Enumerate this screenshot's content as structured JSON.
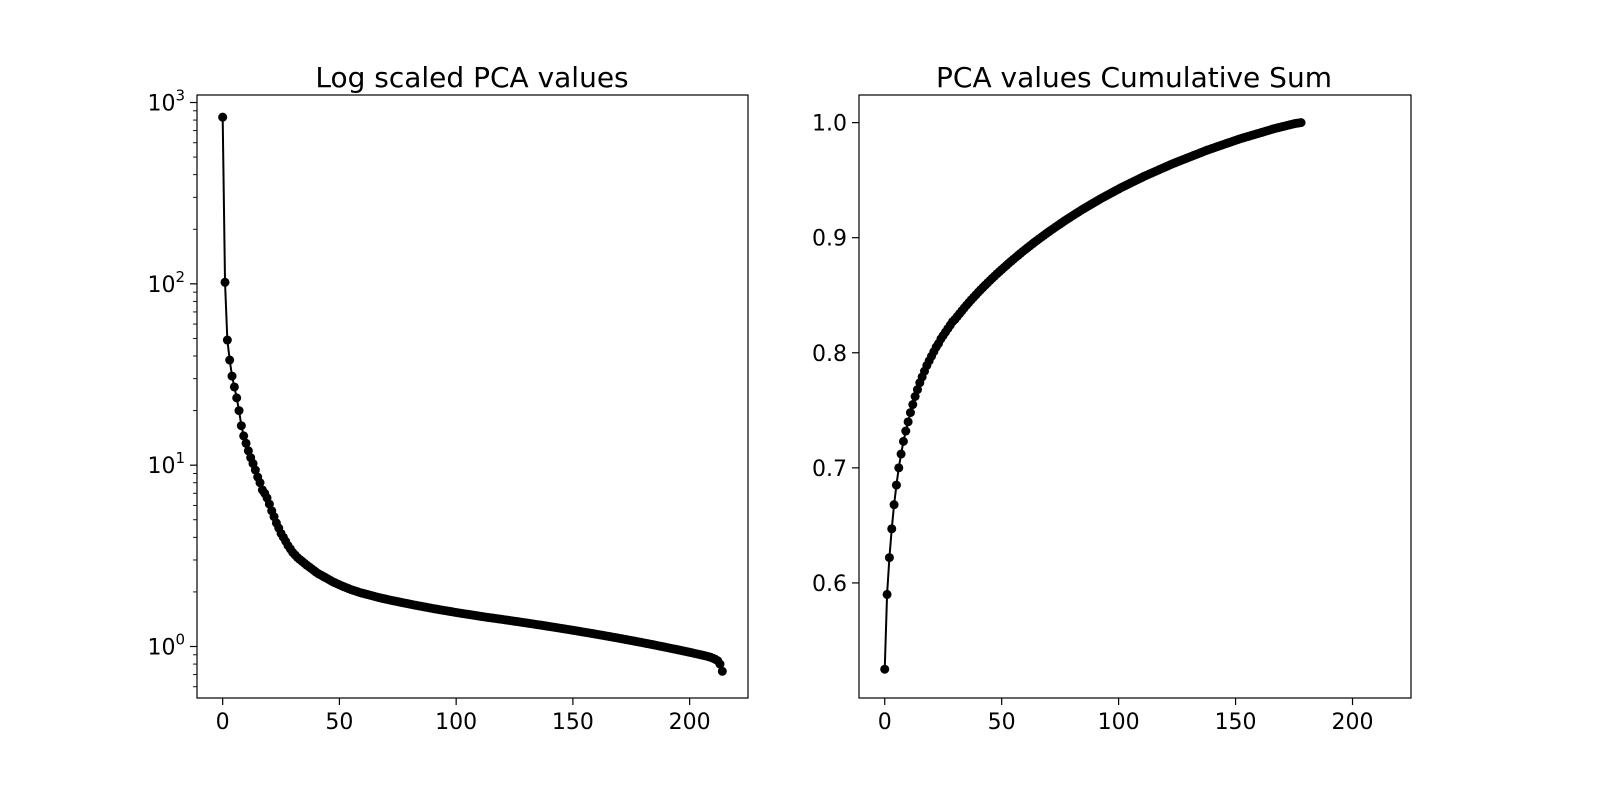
{
  "chart_data": [
    {
      "type": "line",
      "title": "Log scaled PCA values",
      "xlabel": "",
      "ylabel": "",
      "yscale": "log",
      "xlim": [
        -11,
        225
      ],
      "ylim": [
        0.52,
        1100
      ],
      "grid": false,
      "legend": "none",
      "line_color": "#000000",
      "marker": "filled-circle",
      "x_ticks": [
        0,
        50,
        100,
        150,
        200
      ],
      "x_tick_labels": [
        "0",
        "50",
        "100",
        "150",
        "200"
      ],
      "y_ticks": [
        1,
        10,
        100,
        1000
      ],
      "y_tick_labels": [
        {
          "base": "10",
          "exp": "0"
        },
        {
          "base": "10",
          "exp": "1"
        },
        {
          "base": "10",
          "exp": "2"
        },
        {
          "base": "10",
          "exp": "3"
        }
      ],
      "series": [
        {
          "x_start": 0,
          "values": [
            830,
            102,
            49,
            38,
            31,
            27,
            23.5,
            20,
            16.5,
            14.5,
            13.2,
            12,
            11,
            10.2,
            9.4,
            8.6,
            8,
            7.3,
            7,
            6.6,
            6.1,
            5.6,
            5.2,
            4.8,
            4.5,
            4.2,
            4,
            3.8,
            3.6,
            3.45,
            3.3,
            3.2,
            3.1,
            3.02,
            2.95,
            2.88,
            2.81,
            2.75,
            2.69,
            2.63,
            2.57,
            2.52,
            2.48,
            2.44,
            2.4,
            2.36,
            2.32,
            2.28,
            2.25,
            2.22,
            2.19,
            2.16,
            2.135,
            2.11,
            2.085,
            2.06,
            2.04,
            2.02,
            2.0,
            1.98,
            1.965,
            1.95,
            1.935,
            1.92,
            1.905,
            1.89,
            1.875,
            1.86,
            1.848,
            1.836,
            1.824,
            1.812,
            1.8,
            1.789,
            1.778,
            1.767,
            1.756,
            1.745,
            1.735,
            1.725,
            1.715,
            1.705,
            1.695,
            1.685,
            1.675,
            1.666,
            1.657,
            1.648,
            1.639,
            1.63,
            1.621,
            1.612,
            1.604,
            1.596,
            1.588,
            1.58,
            1.572,
            1.564,
            1.556,
            1.548,
            1.54,
            1.533,
            1.526,
            1.519,
            1.512,
            1.505,
            1.498,
            1.491,
            1.484,
            1.477,
            1.47,
            1.463,
            1.457,
            1.451,
            1.445,
            1.439,
            1.433,
            1.427,
            1.421,
            1.415,
            1.409,
            1.403,
            1.397,
            1.391,
            1.385,
            1.379,
            1.373,
            1.367,
            1.361,
            1.355,
            1.349,
            1.343,
            1.337,
            1.331,
            1.325,
            1.319,
            1.313,
            1.307,
            1.301,
            1.295,
            1.289,
            1.283,
            1.277,
            1.271,
            1.265,
            1.259,
            1.253,
            1.247,
            1.241,
            1.235,
            1.229,
            1.223,
            1.217,
            1.211,
            1.205,
            1.199,
            1.193,
            1.187,
            1.181,
            1.175,
            1.169,
            1.163,
            1.157,
            1.151,
            1.145,
            1.139,
            1.133,
            1.127,
            1.121,
            1.115,
            1.109,
            1.103,
            1.097,
            1.091,
            1.085,
            1.079,
            1.073,
            1.067,
            1.061,
            1.055,
            1.049,
            1.043,
            1.037,
            1.031,
            1.025,
            1.019,
            1.013,
            1.007,
            1.001,
            0.995,
            0.989,
            0.983,
            0.977,
            0.971,
            0.965,
            0.959,
            0.953,
            0.947,
            0.941,
            0.935,
            0.929,
            0.923,
            0.917,
            0.911,
            0.905,
            0.899,
            0.893,
            0.887,
            0.88,
            0.872,
            0.862,
            0.85,
            0.835,
            0.8,
            0.73
          ]
        }
      ]
    },
    {
      "type": "line",
      "title": "PCA values Cumulative Sum",
      "xlabel": "",
      "ylabel": "",
      "yscale": "linear",
      "xlim": [
        -11,
        225
      ],
      "ylim": [
        0.5,
        1.024
      ],
      "grid": false,
      "legend": "none",
      "line_color": "#000000",
      "marker": "filled-circle",
      "x_ticks": [
        0,
        50,
        100,
        150,
        200
      ],
      "x_tick_labels": [
        "0",
        "50",
        "100",
        "150",
        "200"
      ],
      "y_ticks": [
        0.6,
        0.7,
        0.8,
        0.9,
        1.0
      ],
      "y_tick_labels": [
        "0.6",
        "0.7",
        "0.8",
        "0.9",
        "1.0"
      ],
      "series": [
        {
          "x_start": 0,
          "values": [
            0.525,
            0.59,
            0.622,
            0.647,
            0.668,
            0.685,
            0.7,
            0.712,
            0.723,
            0.732,
            0.74,
            0.748,
            0.755,
            0.762,
            0.768,
            0.774,
            0.779,
            0.784,
            0.789,
            0.793,
            0.797,
            0.801,
            0.805,
            0.808,
            0.812,
            0.815,
            0.818,
            0.821,
            0.824,
            0.827,
            0.829,
            0.8315,
            0.834,
            0.8365,
            0.839,
            0.8414,
            0.8437,
            0.846,
            0.8482,
            0.8504,
            0.8526,
            0.8547,
            0.8568,
            0.8588,
            0.8608,
            0.8628,
            0.8648,
            0.8667,
            0.8686,
            0.8705,
            0.8723,
            0.8741,
            0.8759,
            0.8777,
            0.8795,
            0.8812,
            0.8829,
            0.8846,
            0.8863,
            0.888,
            0.8896,
            0.8912,
            0.8928,
            0.8944,
            0.896,
            0.8975,
            0.899,
            0.9005,
            0.902,
            0.9035,
            0.905,
            0.9064,
            0.9078,
            0.9092,
            0.9106,
            0.912,
            0.9134,
            0.9148,
            0.9161,
            0.9174,
            0.9187,
            0.92,
            0.9213,
            0.9226,
            0.9239,
            0.9251,
            0.9263,
            0.9275,
            0.9287,
            0.9299,
            0.9311,
            0.9323,
            0.9335,
            0.9346,
            0.9357,
            0.9368,
            0.9379,
            0.939,
            0.9401,
            0.9412,
            0.9423,
            0.9434,
            0.9444,
            0.9454,
            0.9464,
            0.9474,
            0.9484,
            0.9494,
            0.9504,
            0.9514,
            0.9524,
            0.9534,
            0.9543,
            0.9552,
            0.9561,
            0.957,
            0.9579,
            0.9588,
            0.9597,
            0.9606,
            0.9615,
            0.9624,
            0.9633,
            0.9642,
            0.965,
            0.9658,
            0.9666,
            0.9674,
            0.9682,
            0.969,
            0.9698,
            0.9706,
            0.9714,
            0.9722,
            0.973,
            0.9738,
            0.9746,
            0.9754,
            0.9762,
            0.9769,
            0.9776,
            0.9783,
            0.979,
            0.9797,
            0.9804,
            0.9811,
            0.9818,
            0.9825,
            0.9832,
            0.9839,
            0.9846,
            0.9853,
            0.986,
            0.9866,
            0.9872,
            0.9878,
            0.9884,
            0.989,
            0.9896,
            0.9902,
            0.9908,
            0.9914,
            0.992,
            0.9926,
            0.9932,
            0.9938,
            0.9944,
            0.995,
            0.9955,
            0.996,
            0.9965,
            0.997,
            0.9975,
            0.998,
            0.9985,
            0.999,
            0.9994,
            0.9997,
            1.0
          ]
        }
      ]
    }
  ]
}
